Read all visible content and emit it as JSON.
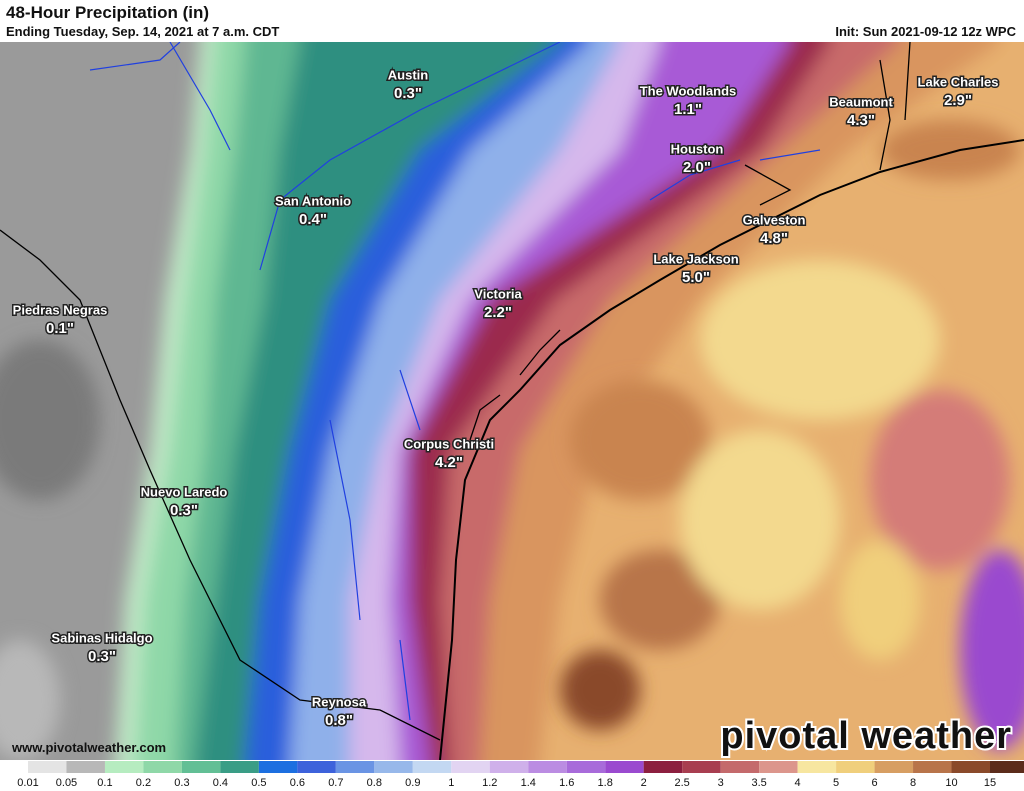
{
  "header": {
    "title": "48-Hour Precipitation (in)",
    "subtitle": "Ending Tuesday, Sep. 14, 2021 at 7 a.m. CDT",
    "init": "Init: Sun 2021-09-12 12z WPC"
  },
  "cities": [
    {
      "name": "Austin",
      "value": "0.3\""
    },
    {
      "name": "The Woodlands",
      "value": "1.1\""
    },
    {
      "name": "Beaumont",
      "value": "4.3\""
    },
    {
      "name": "Lake Charles",
      "value": "2.9\""
    },
    {
      "name": "Houston",
      "value": "2.0\""
    },
    {
      "name": "San Antonio",
      "value": "0.4\""
    },
    {
      "name": "Galveston",
      "value": "4.8\""
    },
    {
      "name": "Lake Jackson",
      "value": "5.0\""
    },
    {
      "name": "Victoria",
      "value": "2.2\""
    },
    {
      "name": "Piedras Negras",
      "value": "0.1\""
    },
    {
      "name": "Corpus Christi",
      "value": "4.2\""
    },
    {
      "name": "Nuevo Laredo",
      "value": "0.3\""
    },
    {
      "name": "Sabinas Hidalgo",
      "value": "0.3\""
    },
    {
      "name": "Reynosa",
      "value": "0.8\""
    }
  ],
  "legend": {
    "labels": [
      "0.01",
      "0.05",
      "0.1",
      "0.2",
      "0.3",
      "0.4",
      "0.5",
      "0.6",
      "0.7",
      "0.8",
      "0.9",
      "1",
      "1.2",
      "1.4",
      "1.6",
      "1.8",
      "2",
      "2.5",
      "3",
      "3.5",
      "4",
      "5",
      "6",
      "8",
      "10",
      "15"
    ],
    "colors": [
      "#ffffff",
      "#e4e4e4",
      "#b8b8b8",
      "#b6ecc0",
      "#8fd8a8",
      "#62bf95",
      "#3a9d86",
      "#1c6fe0",
      "#3d62db",
      "#6a94e4",
      "#97b8ea",
      "#c3d8f2",
      "#e2d4f2",
      "#cfb0ea",
      "#bb8ce2",
      "#a86bda",
      "#9a4acf",
      "#8c1f3f",
      "#a83e50",
      "#c46a6c",
      "#dc968c",
      "#f7e6a0",
      "#f0cf7c",
      "#d79e62",
      "#b8744a",
      "#8a4a2a",
      "#5b2c1b"
    ]
  },
  "watermark": "pivotal weather",
  "url": "www.pivotalweather.com"
}
